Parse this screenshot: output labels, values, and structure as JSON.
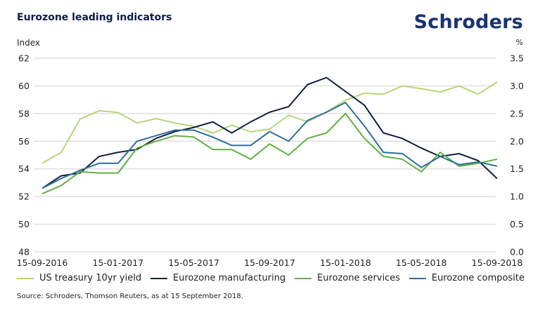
{
  "header": {
    "title": "Eurozone leading indicators",
    "logo": "Schroders"
  },
  "axes": {
    "left_unit": "Index",
    "right_unit": "%"
  },
  "source": "Source: Schroders, Thomson Reuters, as at 15 September 2018.",
  "chart_data": {
    "type": "line",
    "title": "Eurozone leading indicators",
    "xlabel": "",
    "ylabel": "Index",
    "y2label": "%",
    "ylim": [
      48,
      62
    ],
    "y2lim": [
      0.0,
      3.5
    ],
    "yticks": [
      "48",
      "50",
      "52",
      "54",
      "56",
      "58",
      "60",
      "62"
    ],
    "y2ticks": [
      "0.0",
      "0.5",
      "1.0",
      "1.5",
      "2.0",
      "2.5",
      "3.0",
      "3.5"
    ],
    "xtick_labels": [
      "15-09-2016",
      "15-01-2017",
      "15-05-2017",
      "15-09-2017",
      "15-01-2018",
      "15-05-2018",
      "15-09-2018"
    ],
    "xtick_indices": [
      0,
      4,
      8,
      12,
      16,
      20,
      24
    ],
    "x": [
      "2016-09",
      "2016-10",
      "2016-11",
      "2016-12",
      "2017-01",
      "2017-02",
      "2017-03",
      "2017-04",
      "2017-05",
      "2017-06",
      "2017-07",
      "2017-08",
      "2017-09",
      "2017-10",
      "2017-11",
      "2017-12",
      "2018-01",
      "2018-02",
      "2018-03",
      "2018-04",
      "2018-05",
      "2018-06",
      "2018-07",
      "2018-08",
      "2018-09"
    ],
    "grid": true,
    "legend_position": "bottom",
    "series": [
      {
        "name": "US treasury 10yr yield",
        "axis": "right",
        "color": "#b5d77a",
        "values": [
          1.6,
          1.8,
          2.4,
          2.55,
          2.52,
          2.33,
          2.41,
          2.33,
          2.27,
          2.15,
          2.29,
          2.17,
          2.22,
          2.47,
          2.35,
          2.53,
          2.74,
          2.87,
          2.85,
          3.0,
          2.95,
          2.89,
          3.0,
          2.85,
          3.07
        ]
      },
      {
        "name": "Eurozone manufacturing",
        "axis": "left",
        "color": "#121f3f",
        "values": [
          52.6,
          53.5,
          53.7,
          54.9,
          55.2,
          55.4,
          56.2,
          56.7,
          57.0,
          57.4,
          56.6,
          57.4,
          58.1,
          58.5,
          60.1,
          60.6,
          59.6,
          58.6,
          56.6,
          56.2,
          55.5,
          54.9,
          55.1,
          54.6,
          53.3
        ]
      },
      {
        "name": "Eurozone services",
        "axis": "left",
        "color": "#62b044",
        "values": [
          52.2,
          52.8,
          53.8,
          53.7,
          53.7,
          55.5,
          56.0,
          56.4,
          56.3,
          55.4,
          55.4,
          54.7,
          55.8,
          55.0,
          56.2,
          56.6,
          58.0,
          56.2,
          54.9,
          54.7,
          53.8,
          55.2,
          54.2,
          54.4,
          54.7
        ]
      },
      {
        "name": "Eurozone composite",
        "axis": "left",
        "color": "#2e6f9e",
        "values": [
          52.6,
          53.3,
          53.9,
          54.4,
          54.4,
          56.0,
          56.4,
          56.8,
          56.8,
          56.3,
          55.7,
          55.7,
          56.7,
          56.0,
          57.5,
          58.1,
          58.8,
          57.1,
          55.2,
          55.1,
          54.1,
          54.9,
          54.3,
          54.5,
          54.2
        ]
      }
    ]
  }
}
